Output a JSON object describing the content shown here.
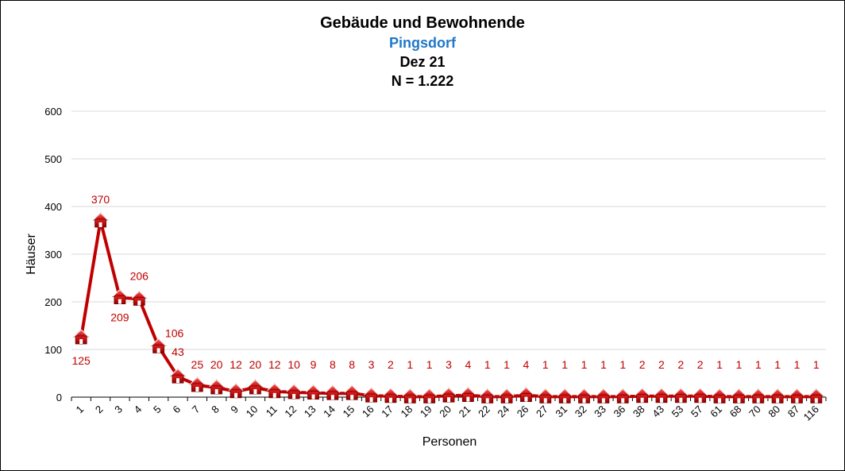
{
  "chart_data": {
    "type": "line",
    "title": "Gebäude und Bewohnende",
    "subtitle": "Pingsdorf",
    "date_label": "Dez 21",
    "n_label": "N = 1.222",
    "xlabel": "Personen",
    "ylabel": "Häuser",
    "ylim": [
      0,
      600
    ],
    "yticks": [
      0,
      100,
      200,
      300,
      400,
      500,
      600
    ],
    "grid": true,
    "categories": [
      "1",
      "2",
      "3",
      "4",
      "5",
      "6",
      "7",
      "8",
      "9",
      "10",
      "11",
      "12",
      "13",
      "14",
      "15",
      "16",
      "17",
      "18",
      "19",
      "20",
      "21",
      "22",
      "24",
      "26",
      "27",
      "31",
      "32",
      "33",
      "36",
      "38",
      "43",
      "53",
      "57",
      "61",
      "68",
      "70",
      "80",
      "87",
      "116"
    ],
    "values": [
      125,
      370,
      209,
      206,
      106,
      43,
      25,
      20,
      12,
      20,
      12,
      10,
      9,
      8,
      8,
      3,
      2,
      1,
      1,
      3,
      4,
      1,
      1,
      4,
      1,
      1,
      1,
      1,
      1,
      2,
      2,
      2,
      2,
      1,
      1,
      1,
      1,
      1,
      1
    ],
    "marker": "house-icon",
    "colors": {
      "line": "#C00000",
      "label": "#C00000",
      "grid": "#D9D9D9",
      "subtitle": "#1F78C8"
    }
  }
}
